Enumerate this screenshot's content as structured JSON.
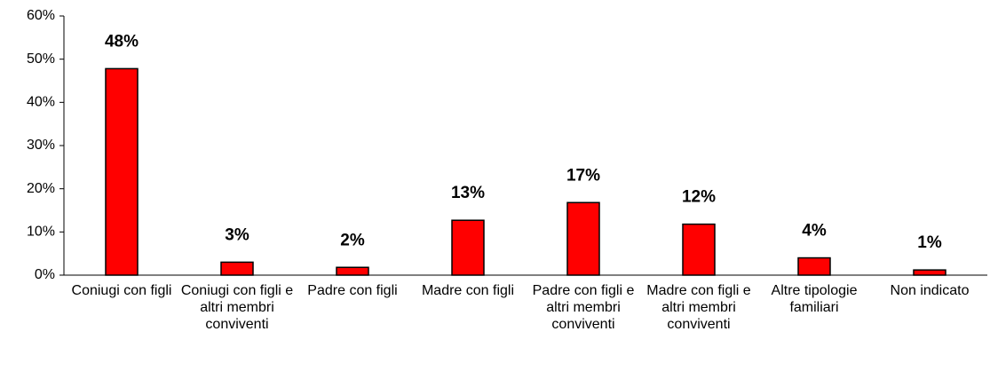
{
  "chart_data": {
    "type": "bar",
    "categories": [
      "Coniugi con figli",
      "Coniugi con figli e altri membri conviventi",
      "Padre con figli",
      "Madre con figli",
      "Padre con figli e altri membri conviventi",
      "Madre con figli e altri membri conviventi",
      "Altre tipologie familiari",
      "Non indicato"
    ],
    "values": [
      47.8,
      3,
      1.8,
      12.7,
      16.8,
      11.8,
      4,
      1.2
    ],
    "value_labels": [
      "48%",
      "3%",
      "2%",
      "13%",
      "17%",
      "12%",
      "4%",
      "1%"
    ],
    "color": "#ff0000",
    "ylim": [
      0,
      60
    ],
    "yticks": [
      {
        "value": 0,
        "label": "0%"
      },
      {
        "value": 10,
        "label": "10%"
      },
      {
        "value": 20,
        "label": "20%"
      },
      {
        "value": 30,
        "label": "30%"
      },
      {
        "value": 40,
        "label": "40%"
      },
      {
        "value": 50,
        "label": "50%"
      },
      {
        "value": 60,
        "label": "60%"
      }
    ],
    "grid": false
  }
}
